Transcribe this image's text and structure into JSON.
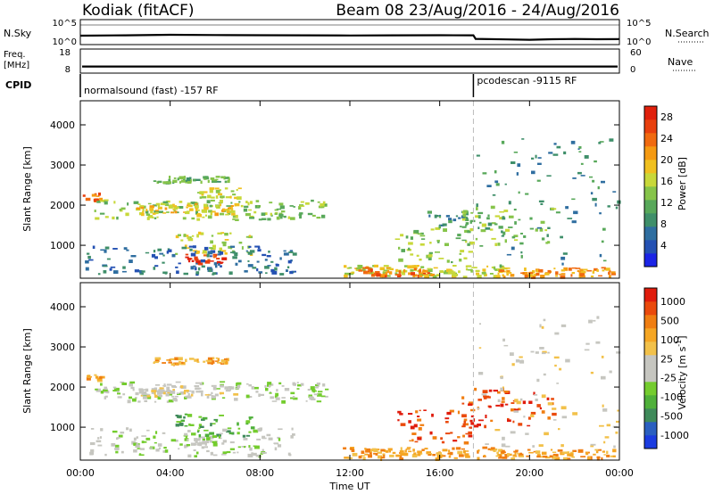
{
  "header": {
    "station": "Kodiak (fitACF)",
    "beam_and_dates": "Beam 08  23/Aug/2016 - 24/Aug/2016"
  },
  "status_panels": {
    "nsky_label": "N.Sky",
    "nsearch_label": "N.Search",
    "nsky_ticks": [
      "10^5",
      "10^0"
    ],
    "nsearch_ticks": [
      "10^5",
      "10^0"
    ],
    "freq_label_line1": "Freq.",
    "freq_label_line2": "[MHz]",
    "freq_ticks": [
      "18",
      "8"
    ],
    "nave_label": "Nave",
    "nave_ticks": [
      "60",
      "0"
    ],
    "cpid_label": "CPID",
    "cpid_segments": [
      {
        "text": "normalsound (fast) -157 RF",
        "start_hour": 0
      },
      {
        "text": "pcodescan -9115 RF",
        "start_hour": 17.5
      }
    ],
    "nsky_trace": [
      [
        0,
        18
      ],
      [
        2,
        17.6
      ],
      [
        4,
        17
      ],
      [
        6,
        17.3
      ],
      [
        8,
        17.5
      ],
      [
        10,
        17.6
      ],
      [
        12,
        17.8
      ],
      [
        14,
        17.6
      ],
      [
        16,
        17.5
      ],
      [
        17.5,
        17.6
      ],
      [
        17.6,
        21.6
      ],
      [
        19,
        22.2
      ],
      [
        20,
        22.6
      ],
      [
        21,
        22
      ],
      [
        22,
        21.7
      ],
      [
        23,
        22
      ],
      [
        24,
        21.9
      ]
    ],
    "freq_level_mhz": 10.2
  },
  "time_axis": {
    "label": "Time UT",
    "ticks": [
      "00:00",
      "04:00",
      "08:00",
      "12:00",
      "16:00",
      "20:00",
      "00:00"
    ],
    "range_hours": [
      0,
      24
    ]
  },
  "chart_data": [
    {
      "type": "heatmap",
      "quantity": "Power",
      "ylabel": "Slant Range [km]",
      "yticks": [
        "1000",
        "2000",
        "3000",
        "4000"
      ],
      "ylim": [
        180,
        4600
      ],
      "colorbar_label": "Power [dB]",
      "colorbar_ticks": [
        "4",
        "8",
        "12",
        "16",
        "20",
        "24",
        "28"
      ],
      "colorbar_colors": [
        "#1b24e6",
        "#2451b3",
        "#2f6ea0",
        "#3f8f6a",
        "#58a85a",
        "#86c44a",
        "#c8d83a",
        "#f0c020",
        "#f59a12",
        "#f06a10",
        "#e8400e",
        "#e0200c"
      ],
      "regions": [
        {
          "t0": 0.6,
          "t1": 10.9,
          "r0": 1650,
          "r1": 2150,
          "level": 5
        },
        {
          "t0": 2.4,
          "t1": 7.0,
          "r0": 1780,
          "r1": 2060,
          "level": 7
        },
        {
          "t0": 5.2,
          "t1": 7.1,
          "r0": 2200,
          "r1": 2450,
          "level": 6
        },
        {
          "t0": 0.1,
          "t1": 0.9,
          "r0": 2150,
          "r1": 2330,
          "level": 9
        },
        {
          "t0": 3.2,
          "t1": 6.6,
          "r0": 2590,
          "r1": 2750,
          "level": 4
        },
        {
          "t0": 4.2,
          "t1": 7.6,
          "r0": 800,
          "r1": 1350,
          "level": 6
        },
        {
          "t0": 4.6,
          "t1": 6.4,
          "r0": 560,
          "r1": 800,
          "level": 10
        },
        {
          "t0": 0.2,
          "t1": 9.5,
          "r0": 300,
          "r1": 1000,
          "level": 2
        },
        {
          "t0": 11.6,
          "t1": 19.0,
          "r0": 240,
          "r1": 520,
          "level": 6
        },
        {
          "t0": 12.0,
          "t1": 15.6,
          "r0": 250,
          "r1": 470,
          "level": 9
        },
        {
          "t0": 14.0,
          "t1": 17.4,
          "r0": 600,
          "r1": 1450,
          "level": 5
        },
        {
          "t0": 15.4,
          "t1": 17.2,
          "r0": 1450,
          "r1": 1900,
          "level": 3
        },
        {
          "t0": 16.8,
          "t1": 21.0,
          "r0": 1050,
          "r1": 2000,
          "level": 5
        },
        {
          "t0": 18.6,
          "t1": 23.8,
          "r0": 240,
          "r1": 460,
          "level": 8
        },
        {
          "t0": 17.6,
          "t1": 23.9,
          "r0": 500,
          "r1": 3800,
          "level": 3
        }
      ]
    },
    {
      "type": "heatmap",
      "quantity": "Velocity",
      "ylabel": "Slant Range [km]",
      "yticks": [
        "1000",
        "2000",
        "3000",
        "4000"
      ],
      "ylim": [
        180,
        4600
      ],
      "colorbar_label": "Velocity [m s",
      "colorbar_label_sup": "-1",
      "colorbar_label_end": "]",
      "colorbar_ticks": [
        "1000",
        "500",
        "100",
        "25",
        "-25",
        "-100",
        "-500",
        "-1000"
      ],
      "colorbar_colors": [
        "#1b3ce0",
        "#2a5fc0",
        "#3f8a5a",
        "#4fb03a",
        "#74cc2e",
        "#c6c6c0",
        "#c6c6c0",
        "#f2c14a",
        "#f5a624",
        "#f07e12",
        "#ea4a0c",
        "#e01c0c"
      ],
      "regions": [
        {
          "t0": 0.6,
          "t1": 10.9,
          "r0": 1650,
          "r1": 2150,
          "level": 5
        },
        {
          "t0": 2.4,
          "t1": 7.0,
          "r0": 1780,
          "r1": 2060,
          "level": 6
        },
        {
          "t0": 0.1,
          "t1": 0.9,
          "r0": 2150,
          "r1": 2330,
          "level": 8
        },
        {
          "t0": 3.2,
          "t1": 6.6,
          "r0": 2590,
          "r1": 2750,
          "level": 8
        },
        {
          "t0": 4.2,
          "t1": 7.6,
          "r0": 800,
          "r1": 1350,
          "level": 3
        },
        {
          "t0": 4.6,
          "t1": 6.4,
          "r0": 560,
          "r1": 800,
          "level": 5
        },
        {
          "t0": 0.2,
          "t1": 9.5,
          "r0": 300,
          "r1": 1000,
          "level": 5
        },
        {
          "t0": 11.6,
          "t1": 19.0,
          "r0": 240,
          "r1": 520,
          "level": 8
        },
        {
          "t0": 14.0,
          "t1": 17.4,
          "r0": 600,
          "r1": 1450,
          "level": 10
        },
        {
          "t0": 16.8,
          "t1": 21.0,
          "r0": 1050,
          "r1": 2000,
          "level": 10
        },
        {
          "t0": 18.6,
          "t1": 23.8,
          "r0": 240,
          "r1": 460,
          "level": 8
        },
        {
          "t0": 17.6,
          "t1": 23.9,
          "r0": 500,
          "r1": 3800,
          "level": 6
        }
      ]
    }
  ]
}
